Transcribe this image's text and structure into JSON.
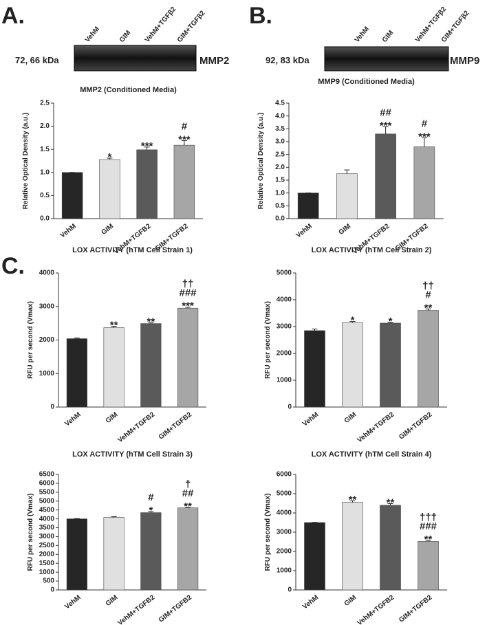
{
  "panels": [
    "A.",
    "B.",
    "C."
  ],
  "blots": [
    {
      "label": "72, 66 kDa",
      "name": "MMP2",
      "lanes": [
        "VehM",
        "GIM",
        "VehM+TGFβ2",
        "GIM+TGFβ2"
      ]
    },
    {
      "label": "92, 83 kDa",
      "name": "MMP9",
      "lanes": [
        "VehM",
        "GIM",
        "VehM+TGFβ2",
        "GIM+TGFβ2"
      ]
    }
  ],
  "chart_data": [
    {
      "type": "bar",
      "title": "MMP2 (Conditioned Media)",
      "ylabel": "Relative Optical Density (a.u.)",
      "categories": [
        "VehM",
        "GIM",
        "VehM+TGFB2",
        "GIM+TGFB2"
      ],
      "values": [
        1.0,
        1.28,
        1.49,
        1.59
      ],
      "errors": [
        0,
        0.03,
        0.06,
        0.1
      ],
      "annotations": [
        [],
        [
          "*"
        ],
        [
          "***"
        ],
        [
          "#",
          "***"
        ]
      ],
      "colors": [
        "#262626",
        "#e0e0e0",
        "#5a5a5a",
        "#a6a6a6"
      ],
      "ylim": [
        0,
        2.5
      ],
      "yticks": [
        {
          "value": 0,
          "label": "0.0"
        },
        0.5,
        {
          "value": 1,
          "label": "1.0"
        },
        1.5,
        {
          "value": 2,
          "label": "2.0"
        },
        2.5
      ]
    },
    {
      "type": "bar",
      "title": "MMP9 (Conditioned Media)",
      "ylabel": "Relative Optical Density (a.u.)",
      "categories": [
        "VehM",
        "GIM",
        "VehM+TGFB2",
        "GIM+TGFB2"
      ],
      "values": [
        1.0,
        1.75,
        3.3,
        2.8
      ],
      "errors": [
        0,
        0.15,
        0.28,
        0.35
      ],
      "annotations": [
        [],
        [],
        [
          "##",
          "***"
        ],
        [
          "#",
          "***"
        ]
      ],
      "colors": [
        "#262626",
        "#e0e0e0",
        "#5a5a5a",
        "#a6a6a6"
      ],
      "ylim": [
        0,
        4.5
      ],
      "yticks": [
        {
          "value": 0,
          "label": "0.0"
        },
        0.5,
        {
          "value": 1,
          "label": "1.0"
        },
        1.5,
        {
          "value": 2,
          "label": "2.0"
        },
        2.5,
        {
          "value": 3,
          "label": "3.0"
        },
        3.5,
        {
          "value": 4,
          "label": "4.0"
        },
        4.5
      ]
    },
    {
      "type": "bar",
      "title": "LOX ACTIVITY (hTM Cell Strain 1)",
      "ylabel": "RFU per second (Vmax)",
      "categories": [
        "VehM",
        "GIM",
        "VehM+TGFB2",
        "GIM+TGFB2"
      ],
      "values": [
        2040,
        2370,
        2490,
        2950
      ],
      "errors": [
        20,
        40,
        20,
        30
      ],
      "annotations": [
        [],
        [
          "**"
        ],
        [
          "**"
        ],
        [
          "††",
          "###",
          "***"
        ]
      ],
      "colors": [
        "#262626",
        "#e0e0e0",
        "#5a5a5a",
        "#a6a6a6"
      ],
      "ylim": [
        0,
        4000
      ],
      "yticks": [
        0,
        1000,
        2000,
        3000,
        4000
      ]
    },
    {
      "type": "bar",
      "title": "LOX ACTIVITY (hTM Cell Strain 2)",
      "ylabel": "RFU per second (Vmax)",
      "categories": [
        "VehM",
        "GIM",
        "VehM+TGFB2",
        "GIM+TGFB2"
      ],
      "values": [
        2850,
        3150,
        3130,
        3600
      ],
      "errors": [
        60,
        40,
        30,
        60
      ],
      "annotations": [
        [],
        [
          "*"
        ],
        [
          "*"
        ],
        [
          "††",
          "#",
          "**"
        ]
      ],
      "colors": [
        "#262626",
        "#e0e0e0",
        "#5a5a5a",
        "#a6a6a6"
      ],
      "ylim": [
        0,
        5000
      ],
      "yticks": [
        0,
        1000,
        2000,
        3000,
        4000,
        5000
      ]
    },
    {
      "type": "bar",
      "title": "LOX ACTIVITY (hTM Cell Strain 3)",
      "ylabel": "RFU per second (Vmax)",
      "categories": [
        "VehM",
        "GIM",
        "VehM+TGFB2",
        "GIM+TGFB2"
      ],
      "values": [
        4000,
        4080,
        4350,
        4620
      ],
      "errors": [
        20,
        40,
        60,
        30
      ],
      "annotations": [
        [],
        [],
        [
          "#",
          "*"
        ],
        [
          "†",
          "##",
          "**"
        ]
      ],
      "colors": [
        "#262626",
        "#e0e0e0",
        "#5a5a5a",
        "#a6a6a6"
      ],
      "ylim": [
        0,
        6500
      ],
      "yticks": [
        0,
        500,
        1000,
        1500,
        2000,
        2500,
        3000,
        3500,
        4000,
        4500,
        5000,
        5500,
        6000,
        6500
      ]
    },
    {
      "type": "bar",
      "title": "LOX ACTIVITY (hTM Cell Strain 4)",
      "ylabel": "RFU per second (Vmax)",
      "categories": [
        "VehM",
        "GIM",
        "VehM+TGFB2",
        "GIM+TGFB2"
      ],
      "values": [
        3500,
        4550,
        4400,
        2520
      ],
      "errors": [
        10,
        80,
        80,
        60
      ],
      "annotations": [
        [],
        [
          "**"
        ],
        [
          "**"
        ],
        [
          "†††",
          "###",
          "**"
        ]
      ],
      "colors": [
        "#262626",
        "#e0e0e0",
        "#5a5a5a",
        "#a6a6a6"
      ],
      "ylim": [
        0,
        6000
      ],
      "yticks": [
        0,
        1000,
        2000,
        3000,
        4000,
        5000,
        6000
      ]
    }
  ]
}
